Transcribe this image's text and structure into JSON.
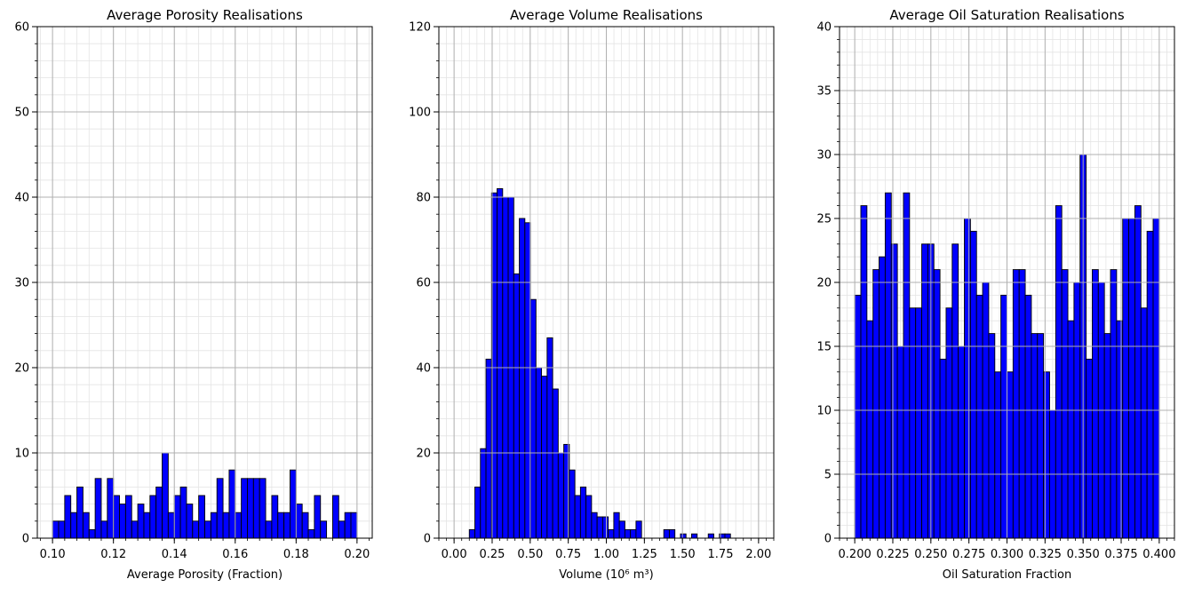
{
  "chart_data": [
    {
      "type": "bar",
      "title": "Average Porosity Realisations",
      "xlabel": "Average Porosity (Fraction)",
      "ylabel": "",
      "xlim": [
        0.095,
        0.205
      ],
      "ylim": [
        0,
        60
      ],
      "grid": true,
      "xticks": [
        0.1,
        0.12,
        0.14,
        0.16,
        0.18,
        0.2
      ],
      "xtick_labels": [
        "0.10",
        "0.12",
        "0.14",
        "0.16",
        "0.18",
        "0.20"
      ],
      "yticks": [
        0,
        10,
        20,
        30,
        40,
        50,
        60
      ],
      "ytick_labels": [
        "0",
        "10",
        "20",
        "30",
        "40",
        "50",
        "60"
      ],
      "bin_start": 0.1,
      "bin_width": 0.002,
      "values": [
        2,
        2,
        5,
        3,
        6,
        3,
        1,
        7,
        2,
        7,
        5,
        4,
        5,
        2,
        4,
        3,
        5,
        6,
        10,
        3,
        5,
        6,
        4,
        2,
        5,
        2,
        3,
        7,
        3,
        8,
        3,
        7,
        7,
        7,
        7,
        2,
        5,
        3,
        3,
        8,
        4,
        3,
        1,
        5,
        2,
        0,
        5,
        2,
        3,
        3
      ],
      "bar_color": "#0000ff",
      "edge_color": "#000000"
    },
    {
      "type": "bar",
      "title": "Average Volume Realisations",
      "xlabel": "Volume (10⁶ m³)",
      "ylabel": "",
      "xlim": [
        -0.1,
        2.1
      ],
      "ylim": [
        0,
        120
      ],
      "grid": true,
      "xticks": [
        0.0,
        0.25,
        0.5,
        0.75,
        1.0,
        1.25,
        1.5,
        1.75,
        2.0
      ],
      "xtick_labels": [
        "0.00",
        "0.25",
        "0.50",
        "0.75",
        "1.00",
        "1.25",
        "1.50",
        "1.75",
        "2.00"
      ],
      "yticks": [
        0,
        20,
        40,
        60,
        80,
        100,
        120
      ],
      "ytick_labels": [
        "0",
        "20",
        "40",
        "60",
        "80",
        "100",
        "120"
      ],
      "bin_start": 0.1,
      "bin_width": 0.0365,
      "values": [
        2,
        12,
        21,
        42,
        81,
        82,
        80,
        80,
        62,
        75,
        74,
        56,
        40,
        38,
        47,
        35,
        20,
        22,
        16,
        10,
        12,
        10,
        6,
        5,
        5,
        2,
        6,
        4,
        2,
        2,
        4,
        0,
        0,
        0,
        0,
        2,
        2,
        0,
        1,
        0,
        1,
        0,
        0,
        1,
        0,
        1,
        1,
        0
      ],
      "bar_color": "#0000ff",
      "edge_color": "#000000"
    },
    {
      "type": "bar",
      "title": "Average Oil Saturation Realisations",
      "xlabel": "Oil Saturation Fraction",
      "ylabel": "",
      "xlim": [
        0.19,
        0.41
      ],
      "ylim": [
        0,
        40
      ],
      "grid": true,
      "xticks": [
        0.2,
        0.225,
        0.25,
        0.275,
        0.3,
        0.325,
        0.35,
        0.375,
        0.4
      ],
      "xtick_labels": [
        "0.200",
        "0.225",
        "0.250",
        "0.275",
        "0.300",
        "0.325",
        "0.350",
        "0.375",
        "0.400"
      ],
      "yticks": [
        0,
        5,
        10,
        15,
        20,
        25,
        30,
        35,
        40
      ],
      "ytick_labels": [
        "0",
        "5",
        "10",
        "15",
        "20",
        "25",
        "30",
        "35",
        "40"
      ],
      "bin_start": 0.2,
      "bin_width": 0.004,
      "values": [
        19,
        26,
        17,
        21,
        22,
        27,
        23,
        15,
        27,
        18,
        18,
        23,
        23,
        21,
        14,
        18,
        23,
        15,
        25,
        24,
        19,
        20,
        16,
        13,
        19,
        13,
        21,
        21,
        19,
        16,
        16,
        13,
        10,
        26,
        21,
        17,
        20,
        30,
        14,
        21,
        20,
        16,
        21,
        17,
        25,
        25,
        26,
        18,
        24,
        25
      ],
      "bar_color": "#0000ff",
      "edge_color": "#000000"
    }
  ]
}
